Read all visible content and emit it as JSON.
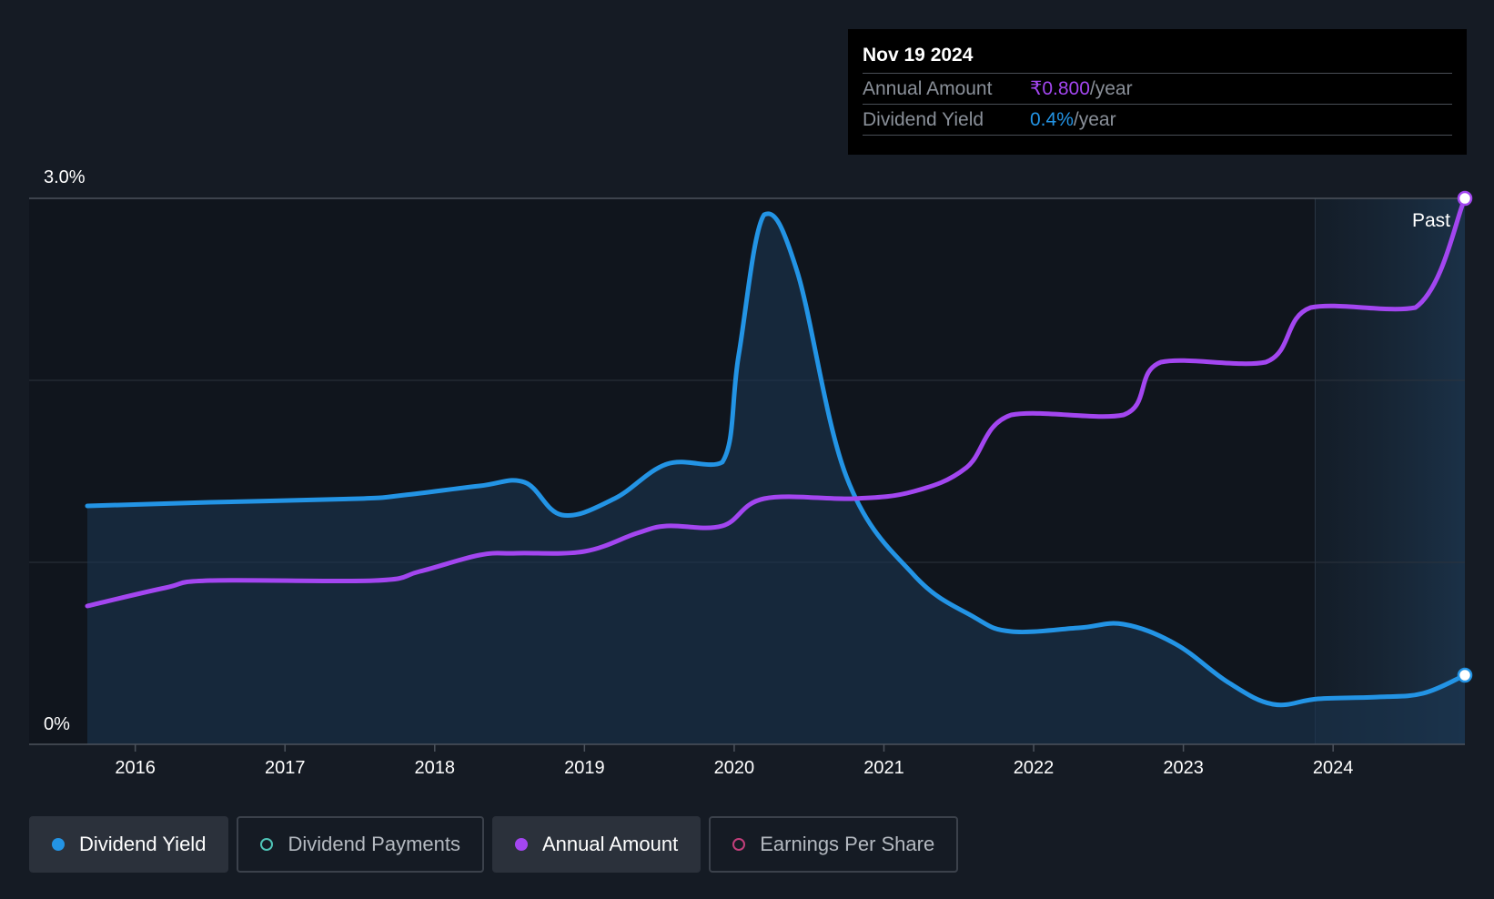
{
  "tooltip": {
    "date": "Nov 19 2024",
    "rows": [
      {
        "label": "Annual Amount",
        "value": "₹0.800",
        "unit": "/year",
        "color": "#a346f0"
      },
      {
        "label": "Dividend Yield",
        "value": "0.4%",
        "unit": "/year",
        "color": "#2394e5"
      }
    ]
  },
  "legend": [
    {
      "label": "Dividend Yield",
      "color": "#2394e5",
      "active": true,
      "style": "filled"
    },
    {
      "label": "Dividend Payments",
      "color": "#4fc4b7",
      "active": false,
      "style": "hollow"
    },
    {
      "label": "Annual Amount",
      "color": "#a346f0",
      "active": true,
      "style": "filled"
    },
    {
      "label": "Earnings Per Share",
      "color": "#c23f7b",
      "active": false,
      "style": "hollow"
    }
  ],
  "chart_data": {
    "type": "line",
    "y_label_top": "3.0%",
    "y_label_bottom": "0%",
    "ylim": [
      0,
      3.0
    ],
    "xlim": [
      2015.3,
      2024.88
    ],
    "x_ticks": [
      "2016",
      "2017",
      "2018",
      "2019",
      "2020",
      "2021",
      "2022",
      "2023",
      "2024"
    ],
    "past_label": "Past",
    "past_region_start": 2023.88,
    "grid": true,
    "series": [
      {
        "name": "Dividend Yield",
        "color": "#2394e5",
        "fill": true,
        "points": [
          [
            2015.68,
            1.31
          ],
          [
            2016.5,
            1.33
          ],
          [
            2017.5,
            1.35
          ],
          [
            2017.8,
            1.37
          ],
          [
            2018.3,
            1.42
          ],
          [
            2018.6,
            1.44
          ],
          [
            2018.85,
            1.26
          ],
          [
            2019.2,
            1.35
          ],
          [
            2019.55,
            1.54
          ],
          [
            2019.92,
            1.55
          ],
          [
            2020.03,
            2.14
          ],
          [
            2020.2,
            2.91
          ],
          [
            2020.42,
            2.6
          ],
          [
            2020.75,
            1.47
          ],
          [
            2021.2,
            0.93
          ],
          [
            2021.6,
            0.7
          ],
          [
            2021.85,
            0.62
          ],
          [
            2022.3,
            0.64
          ],
          [
            2022.6,
            0.66
          ],
          [
            2022.95,
            0.55
          ],
          [
            2023.3,
            0.34
          ],
          [
            2023.6,
            0.22
          ],
          [
            2023.9,
            0.25
          ],
          [
            2024.3,
            0.26
          ],
          [
            2024.6,
            0.28
          ],
          [
            2024.88,
            0.38
          ]
        ]
      },
      {
        "name": "Annual Amount",
        "color": "#a346f0",
        "fill": false,
        "points": [
          [
            2015.68,
            0.76
          ],
          [
            2016.2,
            0.86
          ],
          [
            2016.5,
            0.9
          ],
          [
            2017.6,
            0.9
          ],
          [
            2017.9,
            0.95
          ],
          [
            2018.3,
            1.04
          ],
          [
            2018.55,
            1.05
          ],
          [
            2019.0,
            1.06
          ],
          [
            2019.35,
            1.16
          ],
          [
            2019.55,
            1.2
          ],
          [
            2019.92,
            1.2
          ],
          [
            2020.2,
            1.35
          ],
          [
            2020.8,
            1.35
          ],
          [
            2021.2,
            1.39
          ],
          [
            2021.55,
            1.52
          ],
          [
            2021.85,
            1.81
          ],
          [
            2022.6,
            1.81
          ],
          [
            2022.85,
            2.1
          ],
          [
            2023.55,
            2.1
          ],
          [
            2023.85,
            2.4
          ],
          [
            2024.55,
            2.4
          ],
          [
            2024.88,
            3.0
          ]
        ]
      }
    ]
  }
}
